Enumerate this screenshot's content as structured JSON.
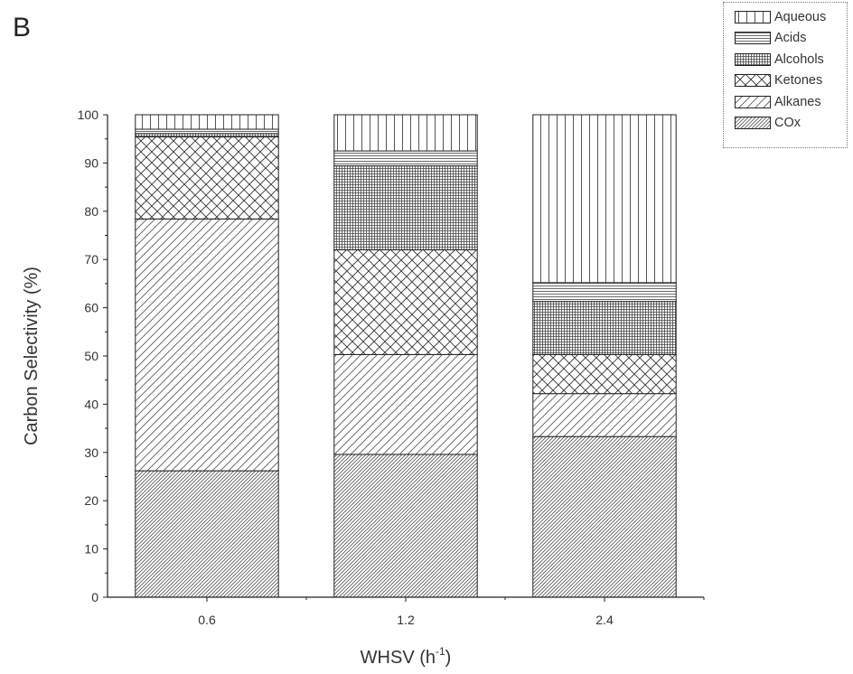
{
  "panel_label": "B",
  "chart_data": {
    "type": "bar",
    "stacked": true,
    "title": "",
    "xlabel": "WHSV (h",
    "xlabel_sup": "-1",
    "xlabel_close": ")",
    "ylabel": "Carbon Selectivity (%)",
    "ylim": [
      0,
      100
    ],
    "yticks": [
      0,
      10,
      20,
      30,
      40,
      50,
      60,
      70,
      80,
      90,
      100
    ],
    "categories": [
      "0.6",
      "1.2",
      "2.4"
    ],
    "grid": false,
    "legend_position": "top-right",
    "series": [
      {
        "name": "COx",
        "pattern": "diag-dense",
        "values": [
          26.2,
          29.6,
          33.3
        ]
      },
      {
        "name": "Alkanes",
        "pattern": "diag-sparse",
        "values": [
          52.2,
          20.7,
          8.9
        ]
      },
      {
        "name": "Ketones",
        "pattern": "crosshatch",
        "values": [
          17.0,
          21.7,
          8.1
        ]
      },
      {
        "name": "Alcohols",
        "pattern": "grid-dense",
        "values": [
          0.7,
          17.4,
          11.0
        ]
      },
      {
        "name": "Acids",
        "pattern": "horizontal",
        "values": [
          0.9,
          3.1,
          3.9
        ]
      },
      {
        "name": "Aqueous",
        "pattern": "vertical",
        "values": [
          3.0,
          7.5,
          34.8
        ]
      }
    ]
  }
}
